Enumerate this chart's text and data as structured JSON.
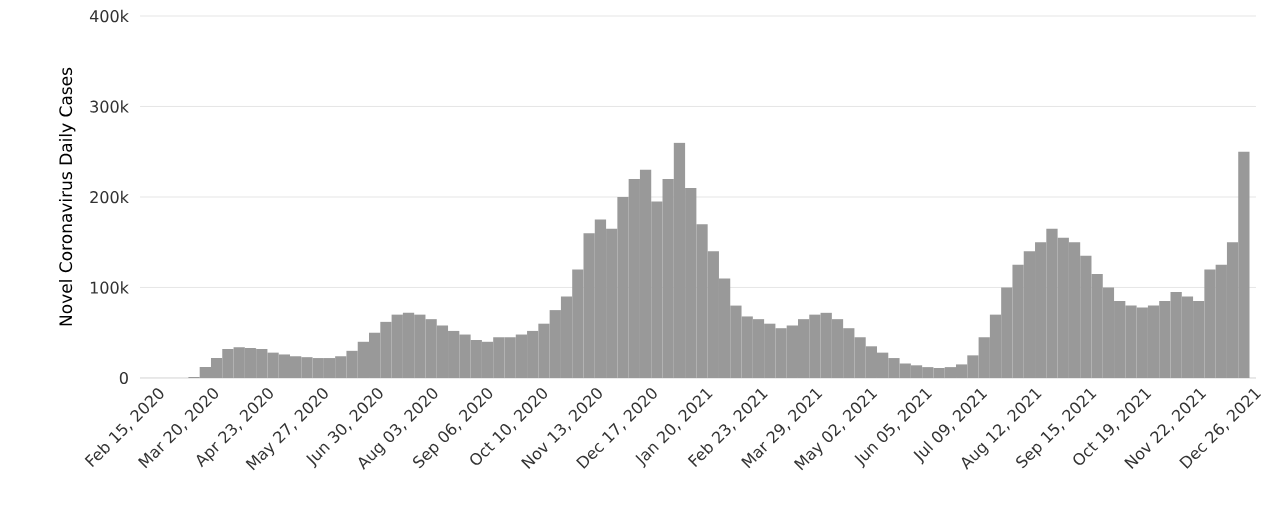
{
  "chart_data": {
    "type": "bar",
    "ylabel": "Novel Coronavirus Daily Cases",
    "x": [
      "2020-03-01",
      "2020-03-08",
      "2020-03-15",
      "2020-03-22",
      "2020-03-29",
      "2020-04-05",
      "2020-04-12",
      "2020-04-19",
      "2020-04-26",
      "2020-05-03",
      "2020-05-10",
      "2020-05-17",
      "2020-05-24",
      "2020-05-31",
      "2020-06-07",
      "2020-06-14",
      "2020-06-21",
      "2020-06-28",
      "2020-07-05",
      "2020-07-12",
      "2020-07-19",
      "2020-07-26",
      "2020-08-02",
      "2020-08-09",
      "2020-08-16",
      "2020-08-23",
      "2020-08-30",
      "2020-09-06",
      "2020-09-13",
      "2020-09-20",
      "2020-09-27",
      "2020-10-04",
      "2020-10-11",
      "2020-10-18",
      "2020-10-25",
      "2020-11-01",
      "2020-11-08",
      "2020-11-15",
      "2020-11-22",
      "2020-11-29",
      "2020-12-06",
      "2020-12-13",
      "2020-12-20",
      "2020-12-27",
      "2021-01-03",
      "2021-01-10",
      "2021-01-17",
      "2021-01-24",
      "2021-01-31",
      "2021-02-07",
      "2021-02-14",
      "2021-02-21",
      "2021-02-28",
      "2021-03-07",
      "2021-03-14",
      "2021-03-21",
      "2021-03-28",
      "2021-04-04",
      "2021-04-11",
      "2021-04-18",
      "2021-04-25",
      "2021-05-02",
      "2021-05-09",
      "2021-05-16",
      "2021-05-23",
      "2021-05-30",
      "2021-06-06",
      "2021-06-13",
      "2021-06-20",
      "2021-06-27",
      "2021-07-04",
      "2021-07-11",
      "2021-07-18",
      "2021-07-25",
      "2021-08-01",
      "2021-08-08",
      "2021-08-15",
      "2021-08-22",
      "2021-08-29",
      "2021-09-05",
      "2021-09-12",
      "2021-09-19",
      "2021-09-26",
      "2021-10-03",
      "2021-10-10",
      "2021-10-17",
      "2021-10-24",
      "2021-10-31",
      "2021-11-07",
      "2021-11-14",
      "2021-11-21",
      "2021-11-28",
      "2021-12-05",
      "2021-12-12",
      "2021-12-19",
      "2021-12-26"
    ],
    "values": [
      0,
      0,
      1000,
      12000,
      22000,
      32000,
      34000,
      33000,
      32000,
      28000,
      26000,
      24000,
      23000,
      22000,
      22000,
      24000,
      30000,
      40000,
      50000,
      62000,
      70000,
      72000,
      70000,
      65000,
      58000,
      52000,
      48000,
      42000,
      40000,
      45000,
      45000,
      48000,
      52000,
      60000,
      75000,
      90000,
      120000,
      160000,
      175000,
      165000,
      200000,
      220000,
      230000,
      195000,
      220000,
      260000,
      210000,
      170000,
      140000,
      110000,
      80000,
      68000,
      65000,
      60000,
      55000,
      58000,
      65000,
      70000,
      72000,
      65000,
      55000,
      45000,
      35000,
      28000,
      22000,
      16000,
      14000,
      12000,
      11000,
      12000,
      15000,
      25000,
      45000,
      70000,
      100000,
      125000,
      140000,
      150000,
      165000,
      155000,
      150000,
      135000,
      115000,
      100000,
      85000,
      80000,
      78000,
      80000,
      85000,
      95000,
      90000,
      85000,
      120000,
      125000,
      150000,
      250000
    ],
    "color": "#999999",
    "xlim": [
      "2020-02-07",
      "2021-12-30"
    ],
    "xticks": [
      {
        "value": "2020-02-15",
        "label": "Feb 15, 2020"
      },
      {
        "value": "2020-03-20",
        "label": "Mar 20, 2020"
      },
      {
        "value": "2020-04-23",
        "label": "Apr 23, 2020"
      },
      {
        "value": "2020-05-27",
        "label": "May 27, 2020"
      },
      {
        "value": "2020-06-30",
        "label": "Jun 30, 2020"
      },
      {
        "value": "2020-08-03",
        "label": "Aug 03, 2020"
      },
      {
        "value": "2020-09-06",
        "label": "Sep 06, 2020"
      },
      {
        "value": "2020-10-10",
        "label": "Oct 10, 2020"
      },
      {
        "value": "2020-11-13",
        "label": "Nov 13, 2020"
      },
      {
        "value": "2020-12-17",
        "label": "Dec 17, 2020"
      },
      {
        "value": "2021-01-20",
        "label": "Jan 20, 2021"
      },
      {
        "value": "2021-02-23",
        "label": "Feb 23, 2021"
      },
      {
        "value": "2021-03-29",
        "label": "Mar 29, 2021"
      },
      {
        "value": "2021-05-02",
        "label": "May 02, 2021"
      },
      {
        "value": "2021-06-05",
        "label": "Jun 05, 2021"
      },
      {
        "value": "2021-07-09",
        "label": "Jul 09, 2021"
      },
      {
        "value": "2021-08-12",
        "label": "Aug 12, 2021"
      },
      {
        "value": "2021-09-15",
        "label": "Sep 15, 2021"
      },
      {
        "value": "2021-10-19",
        "label": "Oct 19, 2021"
      },
      {
        "value": "2021-11-22",
        "label": "Nov 22, 2021"
      },
      {
        "value": "2021-12-26",
        "label": "Dec 26, 2021"
      }
    ],
    "ylim": [
      0,
      400000
    ],
    "yticks": [
      0,
      {
        "value": 100000,
        "label": "100k"
      },
      {
        "value": 200000,
        "label": "200k"
      },
      {
        "value": 300000,
        "label": "300k"
      },
      {
        "value": 400000,
        "label": "400k"
      }
    ],
    "grid": "y"
  }
}
